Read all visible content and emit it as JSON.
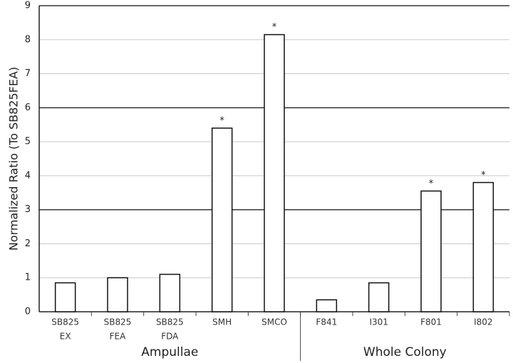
{
  "chart_data": {
    "type": "bar",
    "y_label": "Normalized Ratio (To SB825FEA)",
    "categories": [
      [
        "SB825",
        "EX"
      ],
      [
        "SB825",
        "FEA"
      ],
      [
        "SB825",
        "FDA"
      ],
      [
        "SMH"
      ],
      [
        "SMCO"
      ],
      [
        "F841"
      ],
      [
        "I301"
      ],
      [
        "F801"
      ],
      [
        "I802"
      ]
    ],
    "values": [
      0.85,
      1.0,
      1.1,
      5.4,
      8.15,
      0.35,
      0.85,
      3.55,
      3.8
    ],
    "annotations": [
      null,
      null,
      null,
      "*",
      "*",
      null,
      null,
      "*",
      "*"
    ],
    "groups": [
      {
        "name": "Ampullae",
        "count": 5
      },
      {
        "name": "Whole Colony",
        "count": 4
      }
    ],
    "color": "#ffffff",
    "ylim": [
      0,
      9
    ],
    "yticks": [
      0,
      1,
      2,
      3,
      4,
      5,
      6,
      7,
      8,
      9
    ],
    "major_ticks": [
      3,
      6,
      9
    ],
    "grid": true
  }
}
